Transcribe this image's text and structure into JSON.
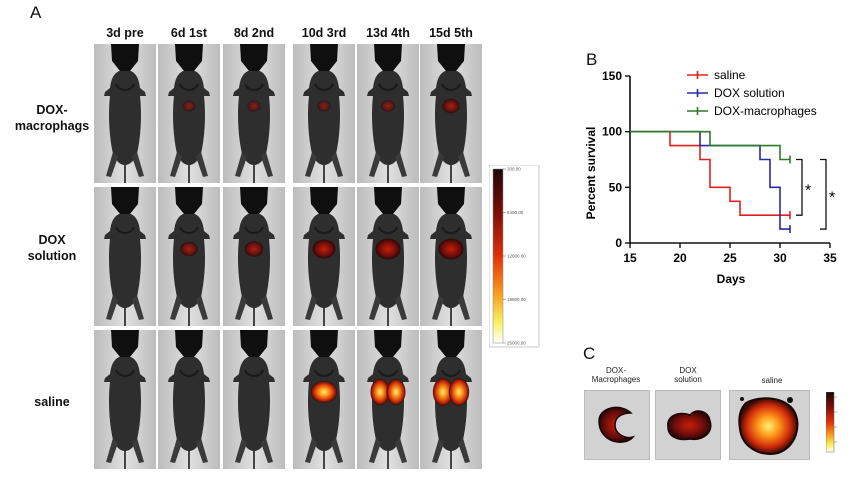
{
  "panel_a": {
    "letter": "A",
    "columns": [
      "3d pre",
      "6d 1st",
      "8d 2nd",
      "10d 3rd",
      "13d 4th",
      "15d 5th"
    ],
    "rows": [
      {
        "label": "DOX-\nmacrophags",
        "signal": [
          0,
          0.05,
          0.05,
          0.05,
          0.1,
          0.25
        ]
      },
      {
        "label": "DOX\nsolution",
        "signal": [
          0,
          0.25,
          0.3,
          0.5,
          0.6,
          0.6
        ]
      },
      {
        "label": "saline",
        "signal": [
          0,
          0,
          0,
          0.65,
          0.9,
          1.0
        ]
      }
    ],
    "colorbar_ticks": [
      "200.00",
      "6400.00",
      "12600.00",
      "18800.00",
      "25000.00"
    ]
  },
  "panel_b": {
    "letter": "B",
    "chart_data": {
      "type": "line",
      "step": true,
      "xlabel": "Days",
      "ylabel": "Percent survival",
      "xlim": [
        15,
        35
      ],
      "ylim": [
        0,
        150
      ],
      "xticks": [
        15,
        20,
        25,
        30,
        35
      ],
      "yticks": [
        0,
        50,
        100,
        150
      ],
      "legend_position": "top-right",
      "significance_marks": [
        "*",
        "*"
      ],
      "series": [
        {
          "name": "saline",
          "color": "#e0201b",
          "x": [
            15,
            19,
            22,
            23,
            25,
            26,
            31
          ],
          "y": [
            100,
            87.5,
            75,
            50,
            37.5,
            25,
            25
          ]
        },
        {
          "name": "DOX solution",
          "color": "#2a2aa6",
          "x": [
            15,
            22,
            28,
            29,
            30,
            31
          ],
          "y": [
            100,
            87.5,
            75,
            50,
            12.5,
            12.5
          ]
        },
        {
          "name": "DOX-macrophages",
          "color": "#2e7a2a",
          "x": [
            15,
            23,
            30,
            31
          ],
          "y": [
            100,
            87.5,
            75,
            75
          ]
        }
      ]
    }
  },
  "panel_c": {
    "letter": "C",
    "organs": [
      {
        "label": "DOX-\nMacrophages",
        "signal": 0.45
      },
      {
        "label": "DOX\nsolution",
        "signal": 0.55
      },
      {
        "label": "saline",
        "signal": 0.95
      }
    ]
  }
}
